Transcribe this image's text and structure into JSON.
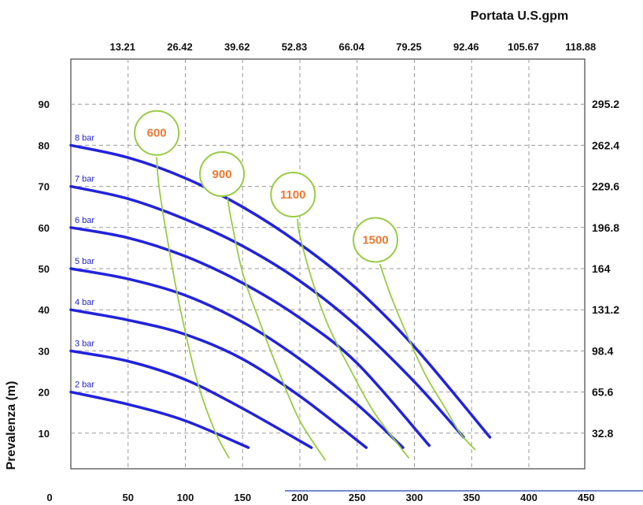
{
  "chart_data": {
    "type": "line",
    "xlabel": "",
    "ylabel": "Prevalenza (m)",
    "secondary_xlabel": "Portata U.S.gpm",
    "xlim": [
      0,
      450
    ],
    "ylim": [
      0,
      100
    ],
    "x_ticks": [
      0,
      50,
      100,
      150,
      200,
      250,
      300,
      350,
      400,
      450
    ],
    "y_ticks": [
      10,
      20,
      30,
      40,
      50,
      60,
      70,
      80,
      90
    ],
    "top_ticks": [
      "13.21",
      "26.42",
      "39.62",
      "52.83",
      "66.04",
      "79.25",
      "92.46",
      "105.67",
      "118.88"
    ],
    "right_ticks": [
      "32.8",
      "65.6",
      "98.4",
      "131.2",
      "164",
      "196.8",
      "229.6",
      "262.4",
      "295.2"
    ],
    "grid": true,
    "colors": {
      "pressure": "#2222dd",
      "speed": "#99cc44",
      "speed_label": "#f07830",
      "label": "#2222cc"
    },
    "pressure_series": [
      {
        "name": "2 bar",
        "points": [
          [
            0,
            20
          ],
          [
            50,
            17
          ],
          [
            100,
            13
          ],
          [
            155,
            6.5
          ]
        ]
      },
      {
        "name": "3 bar",
        "points": [
          [
            0,
            30
          ],
          [
            50,
            27.5
          ],
          [
            100,
            23
          ],
          [
            150,
            16
          ],
          [
            210,
            6.5
          ]
        ]
      },
      {
        "name": "4 bar",
        "points": [
          [
            0,
            40
          ],
          [
            50,
            37.5
          ],
          [
            100,
            34
          ],
          [
            150,
            28
          ],
          [
            200,
            19
          ],
          [
            258,
            6.5
          ]
        ]
      },
      {
        "name": "5 bar",
        "points": [
          [
            0,
            50
          ],
          [
            50,
            47.5
          ],
          [
            100,
            43.5
          ],
          [
            150,
            37
          ],
          [
            200,
            28
          ],
          [
            250,
            17
          ],
          [
            290,
            6.5
          ]
        ]
      },
      {
        "name": "6 bar",
        "points": [
          [
            0,
            60
          ],
          [
            50,
            57.5
          ],
          [
            100,
            53
          ],
          [
            150,
            46.5
          ],
          [
            200,
            38
          ],
          [
            250,
            27
          ],
          [
            313,
            7
          ]
        ]
      },
      {
        "name": "7 bar",
        "points": [
          [
            0,
            70
          ],
          [
            50,
            67
          ],
          [
            100,
            62
          ],
          [
            150,
            55.5
          ],
          [
            200,
            47
          ],
          [
            250,
            36
          ],
          [
            300,
            22.5
          ],
          [
            343,
            9
          ]
        ]
      },
      {
        "name": "8 bar",
        "points": [
          [
            0,
            80
          ],
          [
            50,
            77
          ],
          [
            100,
            72
          ],
          [
            150,
            65
          ],
          [
            200,
            56
          ],
          [
            250,
            45
          ],
          [
            300,
            31
          ],
          [
            366,
            9
          ]
        ]
      }
    ],
    "speed_series": [
      {
        "name": "600",
        "label_pos": [
          75,
          83
        ],
        "points": [
          [
            75,
            77
          ],
          [
            77,
            70
          ],
          [
            85,
            56
          ],
          [
            95,
            41
          ],
          [
            110,
            23
          ],
          [
            125,
            11
          ],
          [
            138,
            4
          ]
        ]
      },
      {
        "name": "900",
        "label_pos": [
          132,
          73
        ],
        "points": [
          [
            137,
            67
          ],
          [
            140,
            62
          ],
          [
            150,
            49
          ],
          [
            165,
            37
          ],
          [
            183,
            24
          ],
          [
            200,
            13
          ],
          [
            222,
            3.5
          ]
        ]
      },
      {
        "name": "1100",
        "label_pos": [
          194,
          68
        ],
        "points": [
          [
            198,
            62
          ],
          [
            200,
            58
          ],
          [
            212,
            46
          ],
          [
            225,
            36
          ],
          [
            245,
            25
          ],
          [
            265,
            15
          ],
          [
            295,
            4
          ]
        ]
      },
      {
        "name": "1500",
        "label_pos": [
          266,
          57
        ],
        "points": [
          [
            270,
            51
          ],
          [
            280,
            43
          ],
          [
            295,
            33
          ],
          [
            310,
            24
          ],
          [
            325,
            17
          ],
          [
            340,
            10
          ],
          [
            353,
            6
          ]
        ]
      }
    ]
  }
}
